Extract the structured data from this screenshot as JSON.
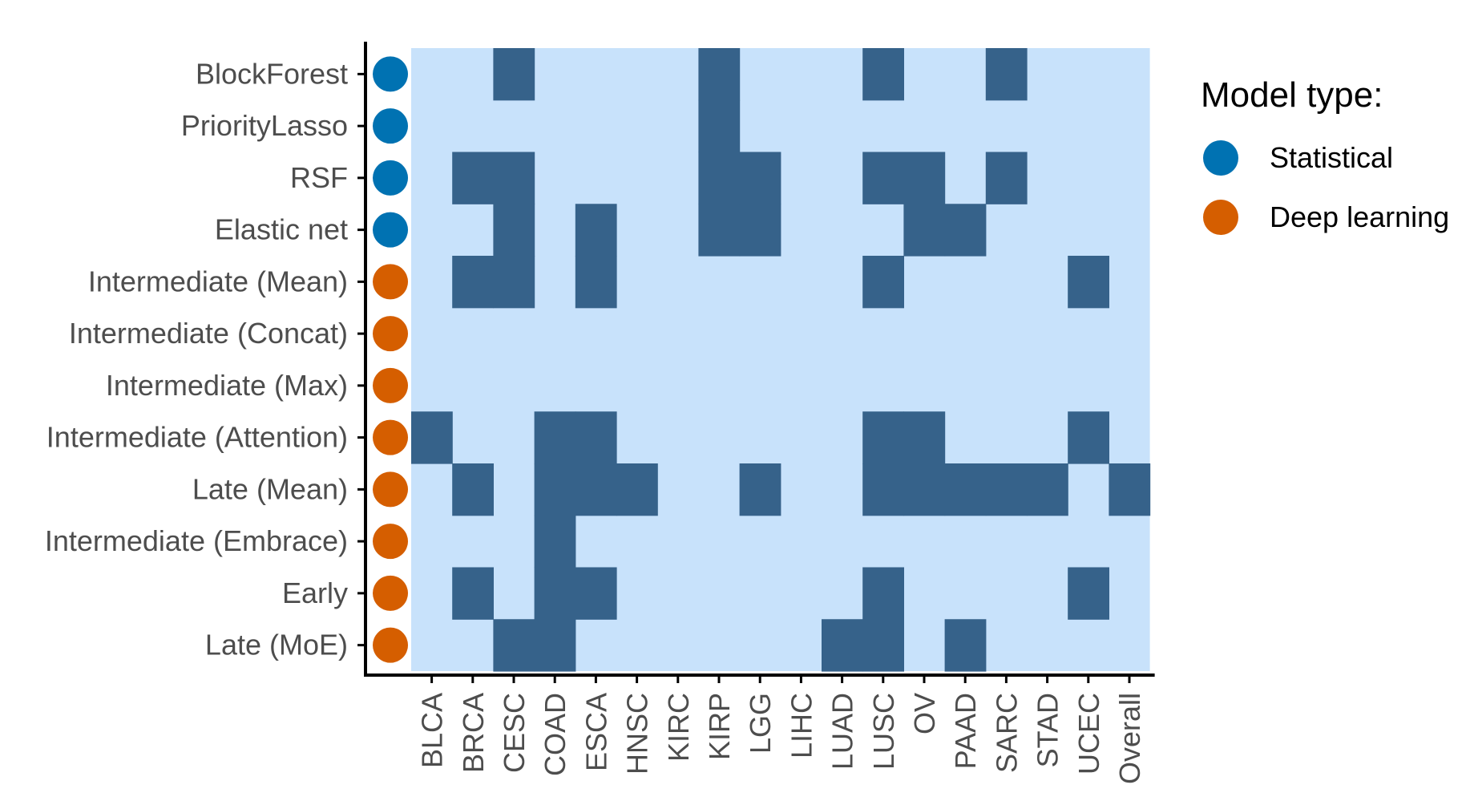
{
  "chart_data": {
    "type": "heatmap",
    "rows": [
      {
        "label": "BlockForest",
        "model_type": "Statistical"
      },
      {
        "label": "PriorityLasso",
        "model_type": "Statistical"
      },
      {
        "label": "RSF",
        "model_type": "Statistical"
      },
      {
        "label": "Elastic net",
        "model_type": "Statistical"
      },
      {
        "label": "Intermediate (Mean)",
        "model_type": "Deep learning"
      },
      {
        "label": "Intermediate (Concat)",
        "model_type": "Deep learning"
      },
      {
        "label": "Intermediate (Max)",
        "model_type": "Deep learning"
      },
      {
        "label": "Intermediate (Attention)",
        "model_type": "Deep learning"
      },
      {
        "label": "Late (Mean)",
        "model_type": "Deep learning"
      },
      {
        "label": "Intermediate (Embrace)",
        "model_type": "Deep learning"
      },
      {
        "label": "Early",
        "model_type": "Deep learning"
      },
      {
        "label": "Late (MoE)",
        "model_type": "Deep learning"
      }
    ],
    "columns": [
      "BLCA",
      "BRCA",
      "CESC",
      "COAD",
      "ESCA",
      "HNSC",
      "KIRC",
      "KIRP",
      "LGG",
      "LIHC",
      "LUAD",
      "LUSC",
      "OV",
      "PAAD",
      "SARC",
      "STAD",
      "UCEC",
      "Overall"
    ],
    "cells": [
      [
        0,
        0,
        1,
        0,
        0,
        0,
        0,
        1,
        0,
        0,
        0,
        1,
        0,
        0,
        1,
        0,
        0,
        0
      ],
      [
        0,
        0,
        0,
        0,
        0,
        0,
        0,
        1,
        0,
        0,
        0,
        0,
        0,
        0,
        0,
        0,
        0,
        0
      ],
      [
        0,
        1,
        1,
        0,
        0,
        0,
        0,
        1,
        1,
        0,
        0,
        1,
        1,
        0,
        1,
        0,
        0,
        0
      ],
      [
        0,
        0,
        1,
        0,
        1,
        0,
        0,
        1,
        1,
        0,
        0,
        0,
        1,
        1,
        0,
        0,
        0,
        0
      ],
      [
        0,
        1,
        1,
        0,
        1,
        0,
        0,
        0,
        0,
        0,
        0,
        1,
        0,
        0,
        0,
        0,
        1,
        0
      ],
      [
        0,
        0,
        0,
        0,
        0,
        0,
        0,
        0,
        0,
        0,
        0,
        0,
        0,
        0,
        0,
        0,
        0,
        0
      ],
      [
        0,
        0,
        0,
        0,
        0,
        0,
        0,
        0,
        0,
        0,
        0,
        0,
        0,
        0,
        0,
        0,
        0,
        0
      ],
      [
        1,
        0,
        0,
        1,
        1,
        0,
        0,
        0,
        0,
        0,
        0,
        1,
        1,
        0,
        0,
        0,
        1,
        0
      ],
      [
        0,
        1,
        0,
        1,
        1,
        1,
        0,
        0,
        1,
        0,
        0,
        1,
        1,
        1,
        1,
        1,
        0,
        1
      ],
      [
        0,
        0,
        0,
        1,
        0,
        0,
        0,
        0,
        0,
        0,
        0,
        0,
        0,
        0,
        0,
        0,
        0,
        0
      ],
      [
        0,
        1,
        0,
        1,
        1,
        0,
        0,
        0,
        0,
        0,
        0,
        1,
        0,
        0,
        0,
        0,
        1,
        0
      ],
      [
        0,
        0,
        1,
        1,
        0,
        0,
        0,
        0,
        0,
        0,
        1,
        1,
        0,
        1,
        0,
        0,
        0,
        0
      ]
    ],
    "colors": {
      "cell_on": "#36628a",
      "cell_off": "#c8e2fb",
      "axis": "#000000"
    },
    "legend": {
      "title": "Model type:",
      "placement": "right",
      "items": [
        {
          "label": "Statistical",
          "color": "#0072b2"
        },
        {
          "label": "Deep learning",
          "color": "#d55e00"
        }
      ]
    }
  }
}
